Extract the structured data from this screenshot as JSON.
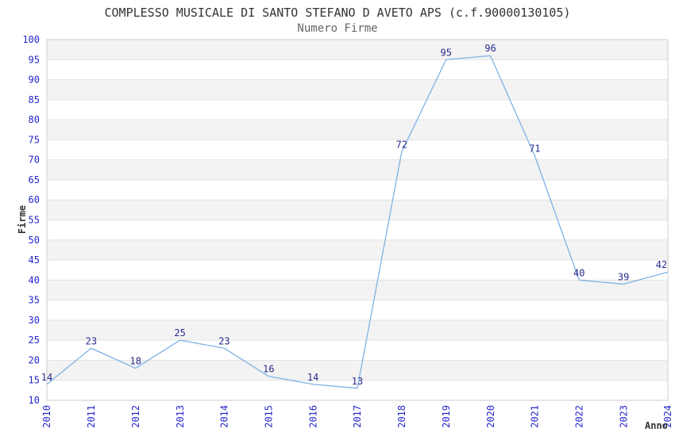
{
  "chart_data": {
    "type": "line",
    "title": "COMPLESSO MUSICALE DI SANTO STEFANO D AVETO APS (c.f.90000130105)",
    "subtitle": "Numero Firme",
    "xlabel": "Anno",
    "ylabel": "Firme",
    "categories": [
      "2010",
      "2011",
      "2012",
      "2013",
      "2014",
      "2015",
      "2016",
      "2017",
      "2018",
      "2019",
      "2020",
      "2021",
      "2022",
      "2023",
      "2024"
    ],
    "values": [
      14,
      23,
      18,
      25,
      23,
      16,
      14,
      13,
      72,
      95,
      96,
      71,
      40,
      39,
      42
    ],
    "ylim": [
      10,
      100
    ],
    "ytick_step": 5,
    "legend": "none",
    "grid": "horizontal-alternating-bands",
    "point_labels": "above-each-point",
    "colors": {
      "line": "#7fb2e5",
      "tick_label": "#2626cc",
      "point_label": "#2a2a8f",
      "title": "#333333",
      "subtitle": "#666666",
      "axis_title": "#333333",
      "band": "#f3f3f3",
      "gridline": "#e3e3e3",
      "border": "#cccccc",
      "background": "#ffffff"
    }
  }
}
